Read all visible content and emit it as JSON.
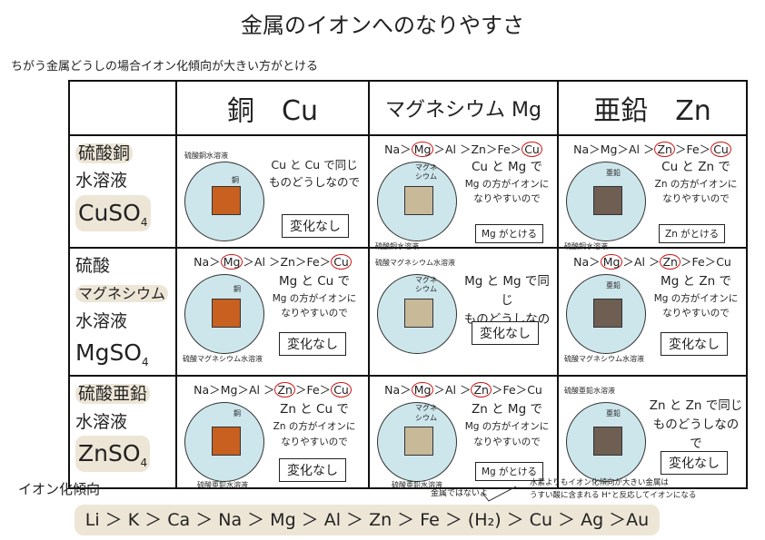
{
  "title": "金属のイオンへのなりやすさ",
  "subtitle": "ちがう金属どうしの場合イオン化傾向が大きい方がとける",
  "columns": [
    "銅　Cu",
    "マグネシウム Mg",
    "亜鉛　Zn"
  ],
  "rows": [
    {
      "name_line1": "硫酸銅",
      "name_line2": "水溶液",
      "name_line3": "",
      "formula_main": "CuSO",
      "formula_sub": "4"
    },
    {
      "name_line1": "硫酸",
      "name_line2": "マグネシウム",
      "name_line3": "水溶液",
      "formula_main": "MgSO",
      "formula_sub": "4"
    },
    {
      "name_line1": "硫酸亜鉛",
      "name_line2": "水溶液",
      "name_line3": "",
      "formula_main": "ZnSO",
      "formula_sub": "4"
    }
  ],
  "metal_labels": {
    "cu": "銅",
    "mg": "マグネ\nシウム",
    "zn": "亜鉛"
  },
  "solution_labels": {
    "cu": "硫酸銅水溶液",
    "mg": "硫酸マグネシウム水溶液",
    "zn": "硫酸亜鉛水溶液"
  },
  "series_text": {
    "na": "Na",
    "mg": "Mg",
    "al": "Al",
    "zn": "Zn",
    "fe": "Fe",
    "cu": "Cu"
  },
  "cells": {
    "r1c1": {
      "line1": "Cu と Cu で同じ",
      "line2": "ものどうしなので",
      "result": "変化なし"
    },
    "r1c2": {
      "line1": "Cu と Mg で",
      "line2": "Mg の方がイオンに",
      "line3": "なりやすいので",
      "result": "Mg がとける"
    },
    "r1c3": {
      "line1": "Cu と Zn で",
      "line2": "Zn の方がイオンに",
      "line3": "なりやすいので",
      "result": "Zn がとける"
    },
    "r2c1": {
      "line1": "Mg と Cu で",
      "line2": "Mg の方がイオンに",
      "line3": "なりやすいので",
      "result": "変化なし"
    },
    "r2c2": {
      "line1": "Mg と Mg で同じ",
      "line2": "ものどうしなので",
      "result": "変化なし"
    },
    "r2c3": {
      "line1": "Mg と Zn で",
      "line2": "Mg の方がイオンに",
      "line3": "なりやすいので",
      "result": "変化なし"
    },
    "r3c1": {
      "line1": "Zn と Cu で",
      "line2": "Zn の方がイオンに",
      "line3": "なりやすいので",
      "result": "変化なし"
    },
    "r3c2": {
      "line1": "Zn と Mg で",
      "line2": "Mg の方がイオンに",
      "line3": "なりやすいので",
      "result": "Mg がとける"
    },
    "r3c3": {
      "line1": "Zn と Zn で同じ",
      "line2": "ものどうしなので",
      "result": "変化なし"
    }
  },
  "bottom": {
    "label": "イオン化傾向",
    "note_not_metal": "金属ではないよ",
    "note_hydrogen_line1": "水素よりもイオン化傾向が大きい金属は",
    "note_hydrogen_line2": "うすい酸に含まれる H⁺と反応してイオンになる",
    "series": "Li ＞ K ＞ Ca ＞ Na ＞ Mg ＞ Al ＞ Zn ＞ Fe ＞ (H₂) ＞ Cu ＞ Ag ＞Au"
  }
}
